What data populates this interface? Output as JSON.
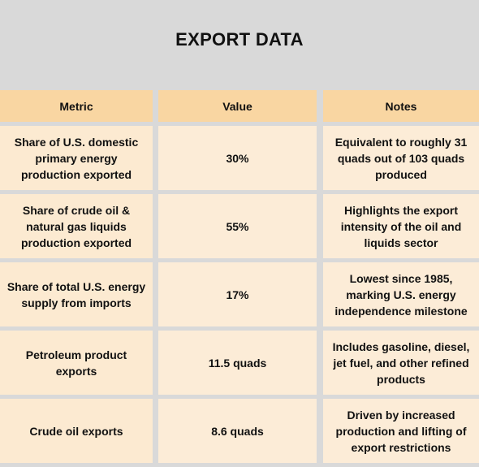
{
  "title": "EXPORT DATA",
  "headers": [
    "Metric",
    "Value",
    "Notes"
  ],
  "rows": [
    {
      "metric": "Share of U.S. domestic primary energy production exported",
      "value": "30%",
      "notes": "Equivalent to roughly 31 quads out of 103 quads produced"
    },
    {
      "metric": "Share of crude oil & natural gas liquids production exported",
      "value": "55%",
      "notes": "Highlights the export intensity of the oil and liquids sector"
    },
    {
      "metric": "Share of total U.S. energy supply from imports",
      "value": "17%",
      "notes": "Lowest since 1985, marking U.S. energy independence milestone"
    },
    {
      "metric": "Petroleum product exports",
      "value": "11.5 quads",
      "notes": "Includes gasoline, diesel, jet fuel, and other refined products"
    },
    {
      "metric": "Crude oil exports",
      "value": "8.6 quads",
      "notes": "Driven by increased production and lifting of export restrictions"
    }
  ]
}
